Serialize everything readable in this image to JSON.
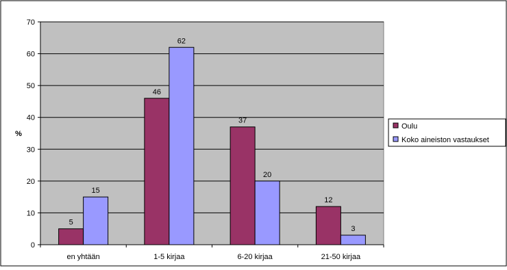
{
  "chart_data": {
    "type": "bar",
    "title": "",
    "xlabel": "",
    "ylabel": "%",
    "ylim": [
      0,
      70
    ],
    "yticks": [
      0,
      10,
      20,
      30,
      40,
      50,
      60,
      70
    ],
    "grid": true,
    "legend_position": "right",
    "categories": [
      "en yhtään",
      "1-5 kirjaa",
      "6-20 kirjaa",
      "21-50 kirjaa"
    ],
    "series": [
      {
        "name": "Oulu",
        "values": [
          5,
          46,
          37,
          12
        ],
        "color": "#993366"
      },
      {
        "name": "Koko aineiston vastaukset",
        "values": [
          15,
          62,
          20,
          3
        ],
        "color": "#9999FF"
      }
    ],
    "plot_background": "#C0C0C0",
    "gridline_color": "#000000"
  }
}
